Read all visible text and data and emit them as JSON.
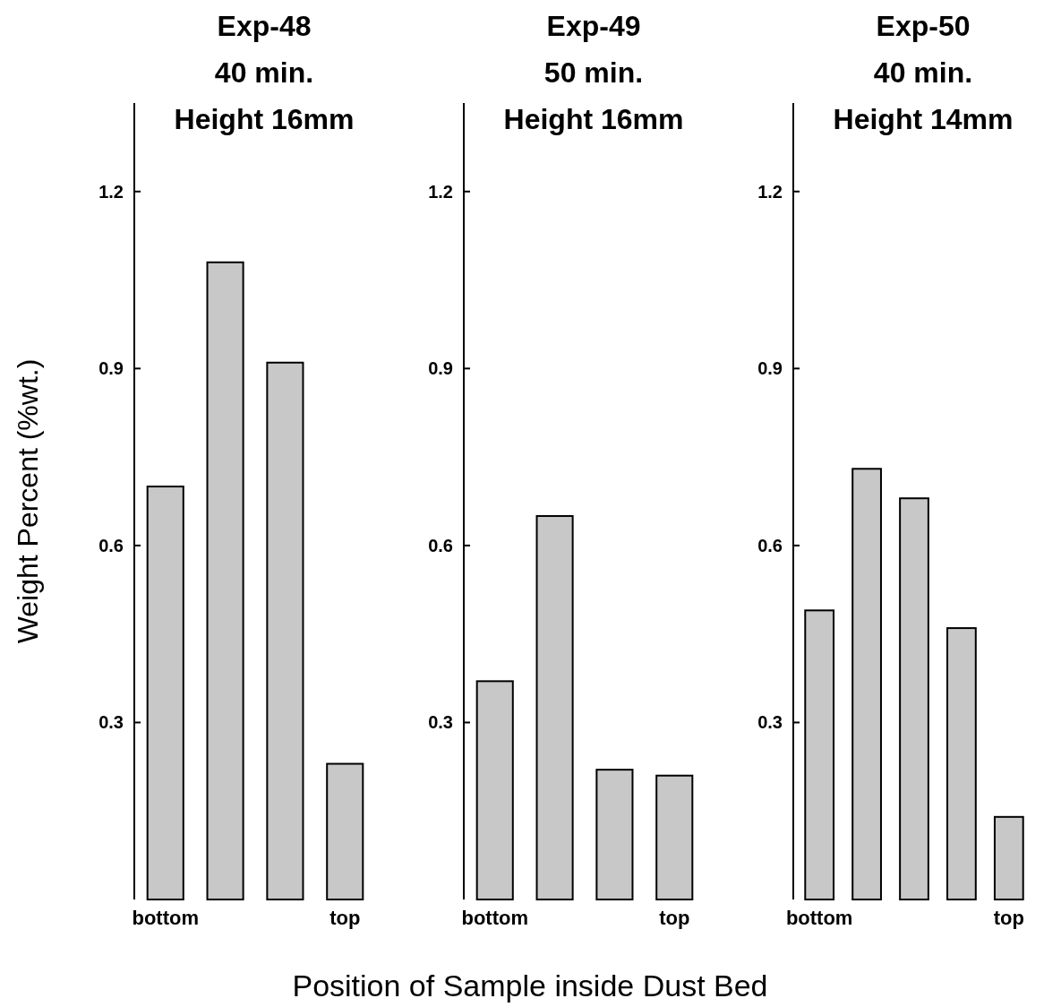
{
  "chart_data": [
    {
      "type": "bar",
      "title": "Exp-48\n40 min.\nHeight 16mm",
      "ylabel": "Weight Percent (%wt.)",
      "categories": [
        "bottom",
        null,
        null,
        "top"
      ],
      "values": [
        0.7,
        1.08,
        0.91,
        0.23
      ],
      "color": "#c8c8c8",
      "ylim": [
        0,
        1.35
      ],
      "yticks": [
        0.3,
        0.6,
        0.9,
        1.2
      ]
    },
    {
      "type": "bar",
      "title": "Exp-49\n50 min.\nHeight 16mm",
      "xlabel": "Position of Sample inside Dust Bed",
      "categories": [
        "bottom",
        null,
        null,
        "top"
      ],
      "values": [
        0.37,
        0.65,
        0.22,
        0.21
      ],
      "color": "#c8c8c8",
      "ylim": [
        0,
        1.35
      ],
      "yticks": [
        0.3,
        0.6,
        0.9,
        1.2
      ]
    },
    {
      "type": "bar",
      "title": "Exp-50\n40 min.\nHeight 14mm",
      "categories": [
        "bottom",
        null,
        null,
        null,
        "top"
      ],
      "values": [
        0.49,
        0.73,
        0.68,
        0.46,
        0.14
      ],
      "color": "#c8c8c8",
      "ylim": [
        0,
        1.35
      ],
      "yticks": [
        0.3,
        0.6,
        0.9,
        1.2
      ]
    }
  ]
}
